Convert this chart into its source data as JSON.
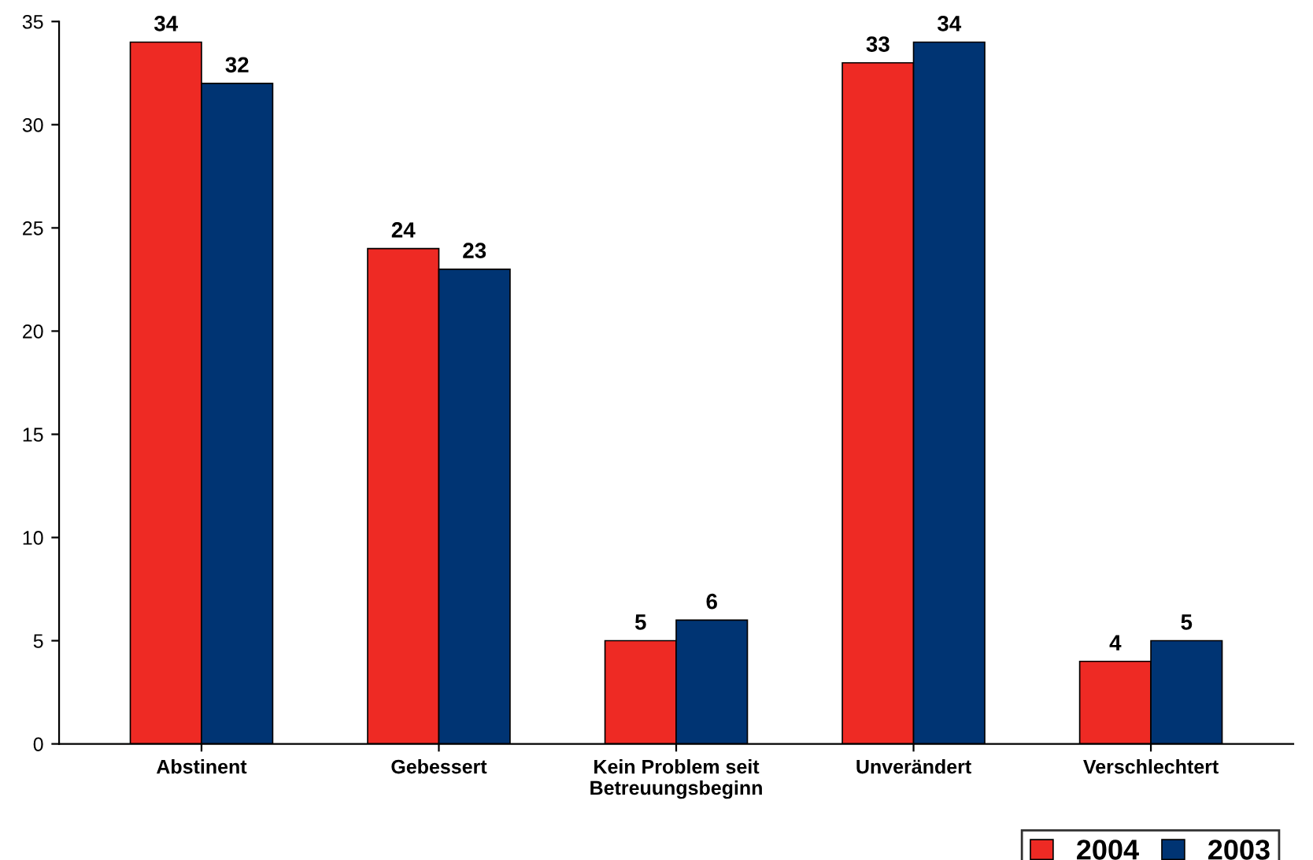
{
  "chart_data": {
    "type": "bar",
    "categories": [
      "Abstinent",
      "Gebessert",
      "Kein Problem seit\nBetreuungsbeginn",
      "Unverändert",
      "Verschlechtert"
    ],
    "series": [
      {
        "name": "2004",
        "color": "#ee2a24",
        "values": [
          34,
          24,
          5,
          33,
          4
        ]
      },
      {
        "name": "2003",
        "color": "#003473",
        "values": [
          32,
          23,
          6,
          34,
          5
        ]
      }
    ],
    "ylim": [
      0,
      35
    ],
    "yticks": [
      0,
      5,
      10,
      15,
      20,
      25,
      30,
      35
    ],
    "data_labels": true,
    "grid": false,
    "legend": "bottom right"
  }
}
